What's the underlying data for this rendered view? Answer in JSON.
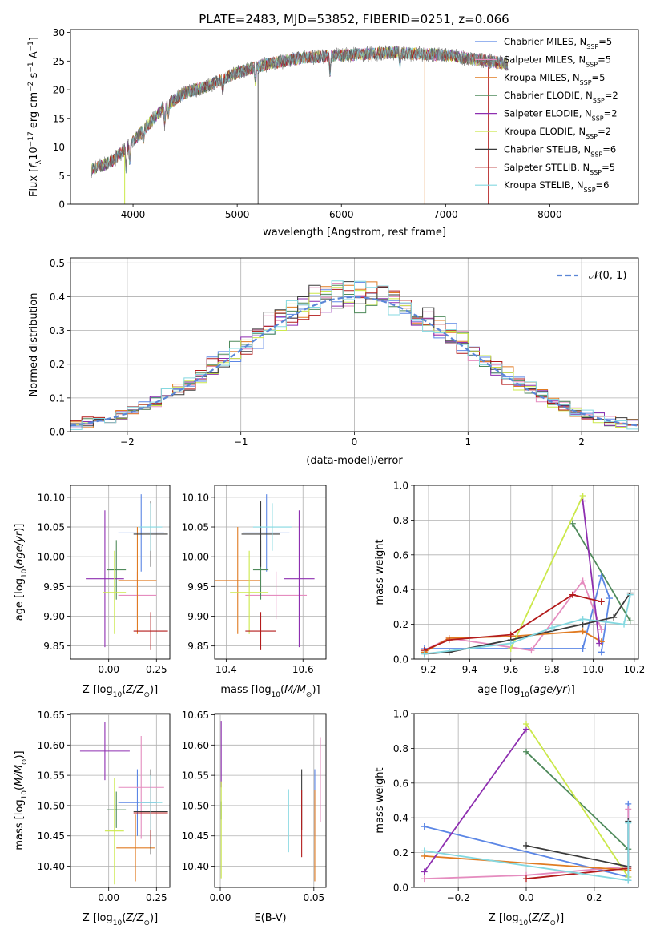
{
  "chart_data": [
    {
      "id": "spectrum",
      "type": "line",
      "title": "PLATE=2483, MJD=53852, FIBERID=0251, z=0.066",
      "xlabel": "wavelength [Angstrom, rest frame]",
      "ylabel": "Flux [f_λ 10^-17 erg cm^-2 s^-1 A^-1]",
      "xlim": [
        3400,
        8850
      ],
      "ylim": [
        0,
        30.5
      ],
      "xticks": [
        4000,
        5000,
        6000,
        7000,
        8000
      ],
      "yticks": [
        0,
        5,
        10,
        15,
        20,
        25,
        30
      ],
      "grid": false,
      "legend_position": "top-right",
      "continuum": [
        [
          3600,
          6
        ],
        [
          3800,
          7.5
        ],
        [
          3950,
          10
        ],
        [
          4100,
          13
        ],
        [
          4300,
          17
        ],
        [
          4500,
          19.5
        ],
        [
          4700,
          20.5
        ],
        [
          5000,
          23
        ],
        [
          5300,
          24.5
        ],
        [
          5600,
          25.5
        ],
        [
          6000,
          26
        ],
        [
          6500,
          26.5
        ],
        [
          7000,
          26
        ],
        [
          7400,
          25
        ],
        [
          7600,
          24.5
        ]
      ],
      "legend": [
        {
          "label": "Chabrier MILES, N",
          "sub": "SSP",
          "suffix": "=5",
          "color": "#5b86e5"
        },
        {
          "label": "Salpeter MILES, N",
          "sub": "SSP",
          "suffix": "=5",
          "color": "#e58cbf"
        },
        {
          "label": "Kroupa MILES, N",
          "sub": "SSP",
          "suffix": "=5",
          "color": "#e07b22"
        },
        {
          "label": "Chabrier ELODIE, N",
          "sub": "SSP",
          "suffix": "=2",
          "color": "#4f8a5b"
        },
        {
          "label": "Salpeter ELODIE, N",
          "sub": "SSP",
          "suffix": "=2",
          "color": "#8e2fb0"
        },
        {
          "label": "Kroupa ELODIE, N",
          "sub": "SSP",
          "suffix": "=2",
          "color": "#cbe84a"
        },
        {
          "label": "Chabrier STELIB, N",
          "sub": "SSP",
          "suffix": "=6",
          "color": "#3b3b3b"
        },
        {
          "label": "Salpeter STELIB, N",
          "sub": "SSP",
          "suffix": "=5",
          "color": "#b31b1b"
        },
        {
          "label": "Kroupa STELIB, N",
          "sub": "SSP",
          "suffix": "=6",
          "color": "#84d8e0"
        }
      ]
    },
    {
      "id": "residuals",
      "type": "line",
      "xlabel": "(data-model)/error",
      "ylabel": "Normed distribution",
      "xlim": [
        -2.5,
        2.5
      ],
      "ylim": [
        0,
        0.515
      ],
      "xticks": [
        -2,
        -1,
        0,
        1,
        2
      ],
      "yticks": [
        0.0,
        0.1,
        0.2,
        0.3,
        0.4,
        0.5
      ],
      "grid": true,
      "legend_position": "top-right",
      "legend_label": "𝒩(0, 1)",
      "normal_color": "#5b86d6",
      "bin_width": 0.1
    },
    {
      "id": "age_vs_Z",
      "type": "scatter",
      "xlabel": "Z [log10(Z/Z⊙)]",
      "ylabel": "age  [log10(age/yr)]",
      "xlim": [
        -0.2,
        0.32
      ],
      "ylim": [
        9.828,
        10.12
      ],
      "xticks": [
        0.0,
        0.25
      ],
      "yticks": [
        9.85,
        9.9,
        9.95,
        10.0,
        10.05,
        10.1
      ],
      "grid": true,
      "points": [
        {
          "x": 0.17,
          "y": 10.04,
          "xe": 0.12,
          "ye": 0.065,
          "color": "#5b86e5"
        },
        {
          "x": 0.15,
          "y": 9.935,
          "xe": 0.1,
          "ye": 0.04,
          "color": "#e58cbf"
        },
        {
          "x": 0.15,
          "y": 9.96,
          "xe": 0.1,
          "ye": 0.09,
          "color": "#e07b22"
        },
        {
          "x": 0.04,
          "y": 9.978,
          "xe": 0.05,
          "ye": 0.05,
          "color": "#4f8a5b"
        },
        {
          "x": -0.02,
          "y": 9.963,
          "xe": 0.1,
          "ye": 0.115,
          "color": "#8e2fb0"
        },
        {
          "x": 0.03,
          "y": 9.94,
          "xe": 0.06,
          "ye": 0.07,
          "color": "#cbe84a"
        },
        {
          "x": 0.22,
          "y": 10.038,
          "xe": 0.09,
          "ye": 0.055,
          "color": "#3b3b3b"
        },
        {
          "x": 0.22,
          "y": 9.875,
          "xe": 0.09,
          "ye": 0.032,
          "color": "#b31b1b"
        },
        {
          "x": 0.22,
          "y": 10.05,
          "xe": 0.06,
          "ye": 0.04,
          "color": "#84d8e0"
        }
      ]
    },
    {
      "id": "age_vs_mass",
      "type": "scatter",
      "xlabel": "mass [log10(M/M⊙)]",
      "ylabel": "",
      "xlim": [
        10.37,
        10.66
      ],
      "ylim": [
        9.828,
        10.12
      ],
      "xticks": [
        10.4,
        10.6
      ],
      "yticks": [
        9.85,
        9.9,
        9.95,
        10.0,
        10.05,
        10.1
      ],
      "grid": true,
      "points": [
        {
          "x": 10.505,
          "y": 10.04,
          "xe": 0.06,
          "ye": 0.065,
          "color": "#5b86e5"
        },
        {
          "x": 10.53,
          "y": 9.935,
          "xe": 0.08,
          "ye": 0.04,
          "color": "#e58cbf"
        },
        {
          "x": 10.43,
          "y": 9.96,
          "xe": 0.06,
          "ye": 0.09,
          "color": "#e07b22"
        },
        {
          "x": 10.49,
          "y": 9.978,
          "xe": 0.02,
          "ye": 0.05,
          "color": "#4f8a5b"
        },
        {
          "x": 10.59,
          "y": 9.963,
          "xe": 0.04,
          "ye": 0.115,
          "color": "#8e2fb0"
        },
        {
          "x": 10.46,
          "y": 9.94,
          "xe": 0.05,
          "ye": 0.07,
          "color": "#cbe84a"
        },
        {
          "x": 10.49,
          "y": 10.038,
          "xe": 0.05,
          "ye": 0.055,
          "color": "#3b3b3b"
        },
        {
          "x": 10.49,
          "y": 9.875,
          "xe": 0.04,
          "ye": 0.032,
          "color": "#b31b1b"
        },
        {
          "x": 10.52,
          "y": 10.05,
          "xe": 0.05,
          "ye": 0.04,
          "color": "#84d8e0"
        }
      ]
    },
    {
      "id": "weight_vs_age",
      "type": "line",
      "xlabel": "age  [log10(age/yr)]",
      "ylabel": "mass weight",
      "xlim": [
        9.13,
        10.22
      ],
      "ylim": [
        0,
        1
      ],
      "xticks": [
        9.2,
        9.4,
        9.6,
        9.8,
        10.0,
        10.2
      ],
      "yticks": [
        0.0,
        0.2,
        0.4,
        0.6,
        0.8,
        1.0
      ],
      "grid": true,
      "series": [
        {
          "color": "#5b86e5",
          "x": [
            9.18,
            9.95,
            10.04,
            10.08,
            10.04
          ],
          "y": [
            0.06,
            0.06,
            0.48,
            0.35,
            0.04
          ]
        },
        {
          "color": "#e58cbf",
          "x": [
            9.18,
            9.3,
            9.7,
            9.95,
            10.04
          ],
          "y": [
            0.05,
            0.12,
            0.05,
            0.45,
            0.17
          ]
        },
        {
          "color": "#e07b22",
          "x": [
            9.18,
            9.3,
            9.6,
            9.95,
            10.04
          ],
          "y": [
            0.04,
            0.12,
            0.13,
            0.16,
            0.1
          ]
        },
        {
          "color": "#4f8a5b",
          "x": [
            9.9,
            10.18
          ],
          "y": [
            0.78,
            0.22
          ]
        },
        {
          "color": "#8e2fb0",
          "x": [
            9.95,
            10.03
          ],
          "y": [
            0.91,
            0.09
          ]
        },
        {
          "color": "#cbe84a",
          "x": [
            9.6,
            9.95
          ],
          "y": [
            0.06,
            0.94
          ]
        },
        {
          "color": "#3b3b3b",
          "x": [
            9.18,
            9.3,
            9.6,
            9.95,
            10.1,
            10.18
          ],
          "y": [
            0.03,
            0.04,
            0.11,
            0.2,
            0.24,
            0.38
          ]
        },
        {
          "color": "#b31b1b",
          "x": [
            9.18,
            9.3,
            9.6,
            9.9,
            10.04
          ],
          "y": [
            0.05,
            0.11,
            0.14,
            0.37,
            0.33
          ]
        },
        {
          "color": "#84d8e0",
          "x": [
            9.18,
            9.6,
            9.8,
            9.95,
            10.15,
            10.18
          ],
          "y": [
            0.03,
            0.09,
            0.18,
            0.23,
            0.2,
            0.37
          ]
        }
      ]
    },
    {
      "id": "mass_vs_Z",
      "type": "scatter",
      "xlabel": "Z [log10(Z/Z⊙)]",
      "ylabel": "mass [log10(M/M⊙)]",
      "xlim": [
        -0.2,
        0.32
      ],
      "ylim": [
        10.365,
        10.652
      ],
      "xticks": [
        0.0,
        0.25
      ],
      "yticks": [
        10.4,
        10.45,
        10.5,
        10.55,
        10.6,
        10.65
      ],
      "grid": true,
      "points": [
        {
          "x": 0.15,
          "y": 10.505,
          "xe": 0.1,
          "ye": 0.055,
          "color": "#5b86e5"
        },
        {
          "x": 0.17,
          "y": 10.53,
          "xe": 0.12,
          "ye": 0.085,
          "color": "#e58cbf"
        },
        {
          "x": 0.14,
          "y": 10.43,
          "xe": 0.1,
          "ye": 0.055,
          "color": "#e07b22"
        },
        {
          "x": 0.04,
          "y": 10.493,
          "xe": 0.05,
          "ye": 0.03,
          "color": "#4f8a5b"
        },
        {
          "x": -0.02,
          "y": 10.59,
          "xe": 0.13,
          "ye": 0.048,
          "color": "#8e2fb0"
        },
        {
          "x": 0.03,
          "y": 10.458,
          "xe": 0.05,
          "ye": 0.088,
          "color": "#cbe84a"
        },
        {
          "x": 0.22,
          "y": 10.49,
          "xe": 0.09,
          "ye": 0.07,
          "color": "#3b3b3b"
        },
        {
          "x": 0.22,
          "y": 10.488,
          "xe": 0.09,
          "ye": 0.052,
          "color": "#b31b1b"
        },
        {
          "x": 0.22,
          "y": 10.505,
          "xe": 0.06,
          "ye": 0.045,
          "color": "#84d8e0"
        }
      ]
    },
    {
      "id": "mass_vs_ebv",
      "type": "scatter",
      "xlabel": "E(B-V)",
      "ylabel": "",
      "xlim": [
        -0.003,
        0.0565
      ],
      "ylim": [
        10.365,
        10.652
      ],
      "xticks": [
        0.0,
        0.05
      ],
      "yticks": [
        10.4,
        10.45,
        10.5,
        10.55,
        10.6,
        10.65
      ],
      "grid": true,
      "points": [
        {
          "x": 0.0505,
          "y": 10.505,
          "xe": 0,
          "ye": 0.055,
          "color": "#5b86e5"
        },
        {
          "x": 0.0535,
          "y": 10.543,
          "xe": 0,
          "ye": 0.07,
          "color": "#e58cbf"
        },
        {
          "x": 0.0505,
          "y": 10.45,
          "xe": 0,
          "ye": 0.075,
          "color": "#e07b22"
        },
        {
          "x": 0.0005,
          "y": 10.492,
          "xe": 0,
          "ye": 0.015,
          "color": "#4f8a5b"
        },
        {
          "x": 0.0005,
          "y": 10.585,
          "xe": 0,
          "ye": 0.055,
          "color": "#8e2fb0"
        },
        {
          "x": 0.0005,
          "y": 10.46,
          "xe": 0,
          "ye": 0.08,
          "color": "#cbe84a"
        },
        {
          "x": 0.0435,
          "y": 10.51,
          "xe": 0,
          "ye": 0.05,
          "color": "#3b3b3b"
        },
        {
          "x": 0.0435,
          "y": 10.47,
          "xe": 0,
          "ye": 0.055,
          "color": "#b31b1b"
        },
        {
          "x": 0.0365,
          "y": 10.475,
          "xe": 0,
          "ye": 0.052,
          "color": "#84d8e0"
        }
      ]
    },
    {
      "id": "weight_vs_Z",
      "type": "line",
      "xlabel": "Z [log10(Z/Z⊙)]",
      "ylabel": "mass weight",
      "xlim": [
        -0.33,
        0.33
      ],
      "ylim": [
        0,
        1
      ],
      "xticks": [
        -0.2,
        0.0,
        0.2
      ],
      "yticks": [
        0.0,
        0.2,
        0.4,
        0.6,
        0.8,
        1.0
      ],
      "grid": true,
      "series": [
        {
          "color": "#5b86e5",
          "x": [
            -0.3,
            0.3,
            0.3,
            0.3
          ],
          "y": [
            0.35,
            0.06,
            0.48,
            0.04
          ]
        },
        {
          "color": "#e58cbf",
          "x": [
            -0.3,
            0.0,
            0.3,
            0.3
          ],
          "y": [
            0.05,
            0.07,
            0.12,
            0.45
          ]
        },
        {
          "color": "#e07b22",
          "x": [
            -0.3,
            0.3
          ],
          "y": [
            0.18,
            0.1
          ]
        },
        {
          "color": "#4f8a5b",
          "x": [
            0.0,
            0.3
          ],
          "y": [
            0.78,
            0.22
          ]
        },
        {
          "color": "#8e2fb0",
          "x": [
            -0.3,
            0.0
          ],
          "y": [
            0.09,
            0.91
          ]
        },
        {
          "color": "#cbe84a",
          "x": [
            0.0,
            0.3
          ],
          "y": [
            0.94,
            0.06
          ]
        },
        {
          "color": "#3b3b3b",
          "x": [
            0.0,
            0.3,
            0.3
          ],
          "y": [
            0.24,
            0.12,
            0.38
          ]
        },
        {
          "color": "#b31b1b",
          "x": [
            0.0,
            0.3
          ],
          "y": [
            0.05,
            0.11
          ]
        },
        {
          "color": "#84d8e0",
          "x": [
            -0.3,
            0.3,
            0.3
          ],
          "y": [
            0.21,
            0.04,
            0.37
          ]
        }
      ]
    }
  ]
}
